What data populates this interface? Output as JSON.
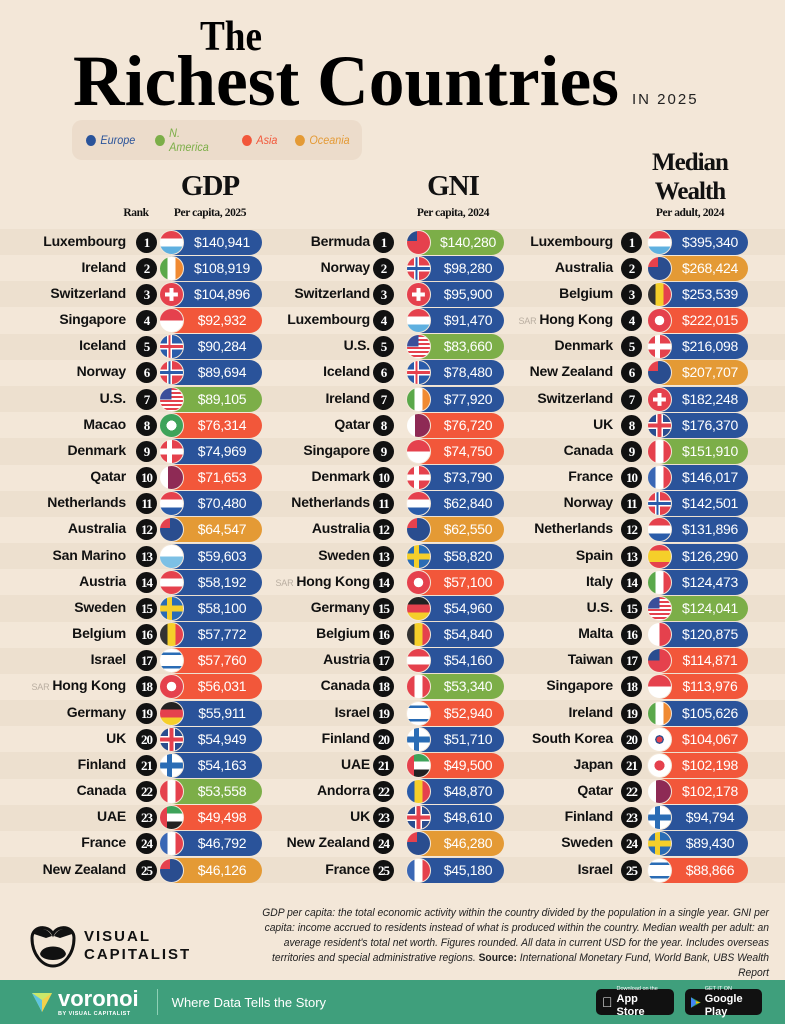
{
  "title": {
    "line1": "The",
    "line2": "Richest Countries",
    "year": "IN 2025"
  },
  "colors": {
    "Europe": "#2a539a",
    "N. America": "#7cae48",
    "Asia": "#f2573a",
    "Oceania": "#e49a35",
    "background": "#f3e7d8",
    "footer_bar": "#3f9f7c"
  },
  "legend": [
    {
      "label": "Europe",
      "color": "#2a539a"
    },
    {
      "label": "N. America",
      "color": "#7cae48"
    },
    {
      "label": "Asia",
      "color": "#f2573a"
    },
    {
      "label": "Oceania",
      "color": "#e49a35"
    }
  ],
  "rank_label": "Rank",
  "chart_data": {
    "type": "table",
    "title": "The Richest Countries in 2025",
    "columns": [
      {
        "title": "GDP",
        "subtitle": "Per capita, 2025",
        "rows": [
          {
            "rank": 1,
            "country": "Luxembourg",
            "value": "$140,941",
            "region": "Europe"
          },
          {
            "rank": 2,
            "country": "Ireland",
            "value": "$108,919",
            "region": "Europe"
          },
          {
            "rank": 3,
            "country": "Switzerland",
            "value": "$104,896",
            "region": "Europe"
          },
          {
            "rank": 4,
            "country": "Singapore",
            "value": "$92,932",
            "region": "Asia"
          },
          {
            "rank": 5,
            "country": "Iceland",
            "value": "$90,284",
            "region": "Europe"
          },
          {
            "rank": 6,
            "country": "Norway",
            "value": "$89,694",
            "region": "Europe"
          },
          {
            "rank": 7,
            "country": "U.S.",
            "value": "$89,105",
            "region": "N. America"
          },
          {
            "rank": 8,
            "country": "Macao",
            "value": "$76,314",
            "region": "Asia"
          },
          {
            "rank": 9,
            "country": "Denmark",
            "value": "$74,969",
            "region": "Europe"
          },
          {
            "rank": 10,
            "country": "Qatar",
            "value": "$71,653",
            "region": "Asia"
          },
          {
            "rank": 11,
            "country": "Netherlands",
            "value": "$70,480",
            "region": "Europe"
          },
          {
            "rank": 12,
            "country": "Australia",
            "value": "$64,547",
            "region": "Oceania"
          },
          {
            "rank": 13,
            "country": "San Marino",
            "value": "$59,603",
            "region": "Europe"
          },
          {
            "rank": 14,
            "country": "Austria",
            "value": "$58,192",
            "region": "Europe"
          },
          {
            "rank": 15,
            "country": "Sweden",
            "value": "$58,100",
            "region": "Europe"
          },
          {
            "rank": 16,
            "country": "Belgium",
            "value": "$57,772",
            "region": "Europe"
          },
          {
            "rank": 17,
            "country": "Israel",
            "value": "$57,760",
            "region": "Asia"
          },
          {
            "rank": 18,
            "country": "Hong Kong",
            "prefix": "SAR",
            "value": "$56,031",
            "region": "Asia"
          },
          {
            "rank": 19,
            "country": "Germany",
            "value": "$55,911",
            "region": "Europe"
          },
          {
            "rank": 20,
            "country": "UK",
            "value": "$54,949",
            "region": "Europe"
          },
          {
            "rank": 21,
            "country": "Finland",
            "value": "$54,163",
            "region": "Europe"
          },
          {
            "rank": 22,
            "country": "Canada",
            "value": "$53,558",
            "region": "N. America"
          },
          {
            "rank": 23,
            "country": "UAE",
            "value": "$49,498",
            "region": "Asia"
          },
          {
            "rank": 24,
            "country": "France",
            "value": "$46,792",
            "region": "Europe"
          },
          {
            "rank": 25,
            "country": "New Zealand",
            "value": "$46,126",
            "region": "Oceania"
          }
        ]
      },
      {
        "title": "GNI",
        "subtitle": "Per capita, 2024",
        "rows": [
          {
            "rank": 1,
            "country": "Bermuda",
            "value": "$140,280",
            "region": "N. America"
          },
          {
            "rank": 2,
            "country": "Norway",
            "value": "$98,280",
            "region": "Europe"
          },
          {
            "rank": 3,
            "country": "Switzerland",
            "value": "$95,900",
            "region": "Europe"
          },
          {
            "rank": 4,
            "country": "Luxembourg",
            "value": "$91,470",
            "region": "Europe"
          },
          {
            "rank": 5,
            "country": "U.S.",
            "value": "$83,660",
            "region": "N. America"
          },
          {
            "rank": 6,
            "country": "Iceland",
            "value": "$78,480",
            "region": "Europe"
          },
          {
            "rank": 7,
            "country": "Ireland",
            "value": "$77,920",
            "region": "Europe"
          },
          {
            "rank": 8,
            "country": "Qatar",
            "value": "$76,720",
            "region": "Asia"
          },
          {
            "rank": 9,
            "country": "Singapore",
            "value": "$74,750",
            "region": "Asia"
          },
          {
            "rank": 10,
            "country": "Denmark",
            "value": "$73,790",
            "region": "Europe"
          },
          {
            "rank": 11,
            "country": "Netherlands",
            "value": "$62,840",
            "region": "Europe"
          },
          {
            "rank": 12,
            "country": "Australia",
            "value": "$62,550",
            "region": "Oceania"
          },
          {
            "rank": 13,
            "country": "Sweden",
            "value": "$58,820",
            "region": "Europe"
          },
          {
            "rank": 14,
            "country": "Hong Kong",
            "prefix": "SAR",
            "value": "$57,100",
            "region": "Asia"
          },
          {
            "rank": 15,
            "country": "Germany",
            "value": "$54,960",
            "region": "Europe"
          },
          {
            "rank": 16,
            "country": "Belgium",
            "value": "$54,840",
            "region": "Europe"
          },
          {
            "rank": 17,
            "country": "Austria",
            "value": "$54,160",
            "region": "Europe"
          },
          {
            "rank": 18,
            "country": "Canada",
            "value": "$53,340",
            "region": "N. America"
          },
          {
            "rank": 19,
            "country": "Israel",
            "value": "$52,940",
            "region": "Asia"
          },
          {
            "rank": 20,
            "country": "Finland",
            "value": "$51,710",
            "region": "Europe"
          },
          {
            "rank": 21,
            "country": "UAE",
            "value": "$49,500",
            "region": "Asia"
          },
          {
            "rank": 22,
            "country": "Andorra",
            "value": "$48,870",
            "region": "Europe"
          },
          {
            "rank": 23,
            "country": "UK",
            "value": "$48,610",
            "region": "Europe"
          },
          {
            "rank": 24,
            "country": "New Zealand",
            "value": "$46,280",
            "region": "Oceania"
          },
          {
            "rank": 25,
            "country": "France",
            "value": "$45,180",
            "region": "Europe"
          }
        ]
      },
      {
        "title": "Median Wealth",
        "title_line1": "Median",
        "title_line2": "Wealth",
        "subtitle": "Per adult, 2024",
        "rows": [
          {
            "rank": 1,
            "country": "Luxembourg",
            "value": "$395,340",
            "region": "Europe"
          },
          {
            "rank": 2,
            "country": "Australia",
            "value": "$268,424",
            "region": "Oceania"
          },
          {
            "rank": 3,
            "country": "Belgium",
            "value": "$253,539",
            "region": "Europe"
          },
          {
            "rank": 4,
            "country": "Hong Kong",
            "prefix": "SAR",
            "value": "$222,015",
            "region": "Asia"
          },
          {
            "rank": 5,
            "country": "Denmark",
            "value": "$216,098",
            "region": "Europe"
          },
          {
            "rank": 6,
            "country": "New Zealand",
            "value": "$207,707",
            "region": "Oceania"
          },
          {
            "rank": 7,
            "country": "Switzerland",
            "value": "$182,248",
            "region": "Europe"
          },
          {
            "rank": 8,
            "country": "UK",
            "value": "$176,370",
            "region": "Europe"
          },
          {
            "rank": 9,
            "country": "Canada",
            "value": "$151,910",
            "region": "N. America"
          },
          {
            "rank": 10,
            "country": "France",
            "value": "$146,017",
            "region": "Europe"
          },
          {
            "rank": 11,
            "country": "Norway",
            "value": "$142,501",
            "region": "Europe"
          },
          {
            "rank": 12,
            "country": "Netherlands",
            "value": "$131,896",
            "region": "Europe"
          },
          {
            "rank": 13,
            "country": "Spain",
            "value": "$126,290",
            "region": "Europe"
          },
          {
            "rank": 14,
            "country": "Italy",
            "value": "$124,473",
            "region": "Europe"
          },
          {
            "rank": 15,
            "country": "U.S.",
            "value": "$124,041",
            "region": "N. America"
          },
          {
            "rank": 16,
            "country": "Malta",
            "value": "$120,875",
            "region": "Europe"
          },
          {
            "rank": 17,
            "country": "Taiwan",
            "value": "$114,871",
            "region": "Asia"
          },
          {
            "rank": 18,
            "country": "Singapore",
            "value": "$113,976",
            "region": "Asia"
          },
          {
            "rank": 19,
            "country": "Ireland",
            "value": "$105,626",
            "region": "Europe"
          },
          {
            "rank": 20,
            "country": "South Korea",
            "value": "$104,067",
            "region": "Asia"
          },
          {
            "rank": 21,
            "country": "Japan",
            "value": "$102,198",
            "region": "Asia"
          },
          {
            "rank": 22,
            "country": "Qatar",
            "value": "$102,178",
            "region": "Asia"
          },
          {
            "rank": 23,
            "country": "Finland",
            "value": "$94,794",
            "region": "Europe"
          },
          {
            "rank": 24,
            "country": "Sweden",
            "value": "$89,430",
            "region": "Europe"
          },
          {
            "rank": 25,
            "country": "Israel",
            "value": "$88,866",
            "region": "Asia"
          }
        ]
      }
    ]
  },
  "notes": {
    "text": "GDP per capita: the total economic activity within the country divided by the population in a single year. GNI per capita: income accrued to residents instead of what is produced within the country. Median wealth per adult: an average resident's total net worth. Figures rounded. All data in current USD for the year. Includes overseas territories and special administrative regions.",
    "source_label": "Source:",
    "source": "International Monetary Fund, World Bank, UBS Wealth Report"
  },
  "brand": {
    "logo_line1": "VISUAL",
    "logo_line2": "CAPITALIST"
  },
  "footer": {
    "brand": "voronoi",
    "brand_sub": "BY VISUAL CAPITALIST",
    "tagline": "Where Data Tells the Story",
    "app_store_small": "Download on the",
    "app_store": "App Store",
    "google_small": "GET IT ON",
    "google": "Google Play"
  }
}
